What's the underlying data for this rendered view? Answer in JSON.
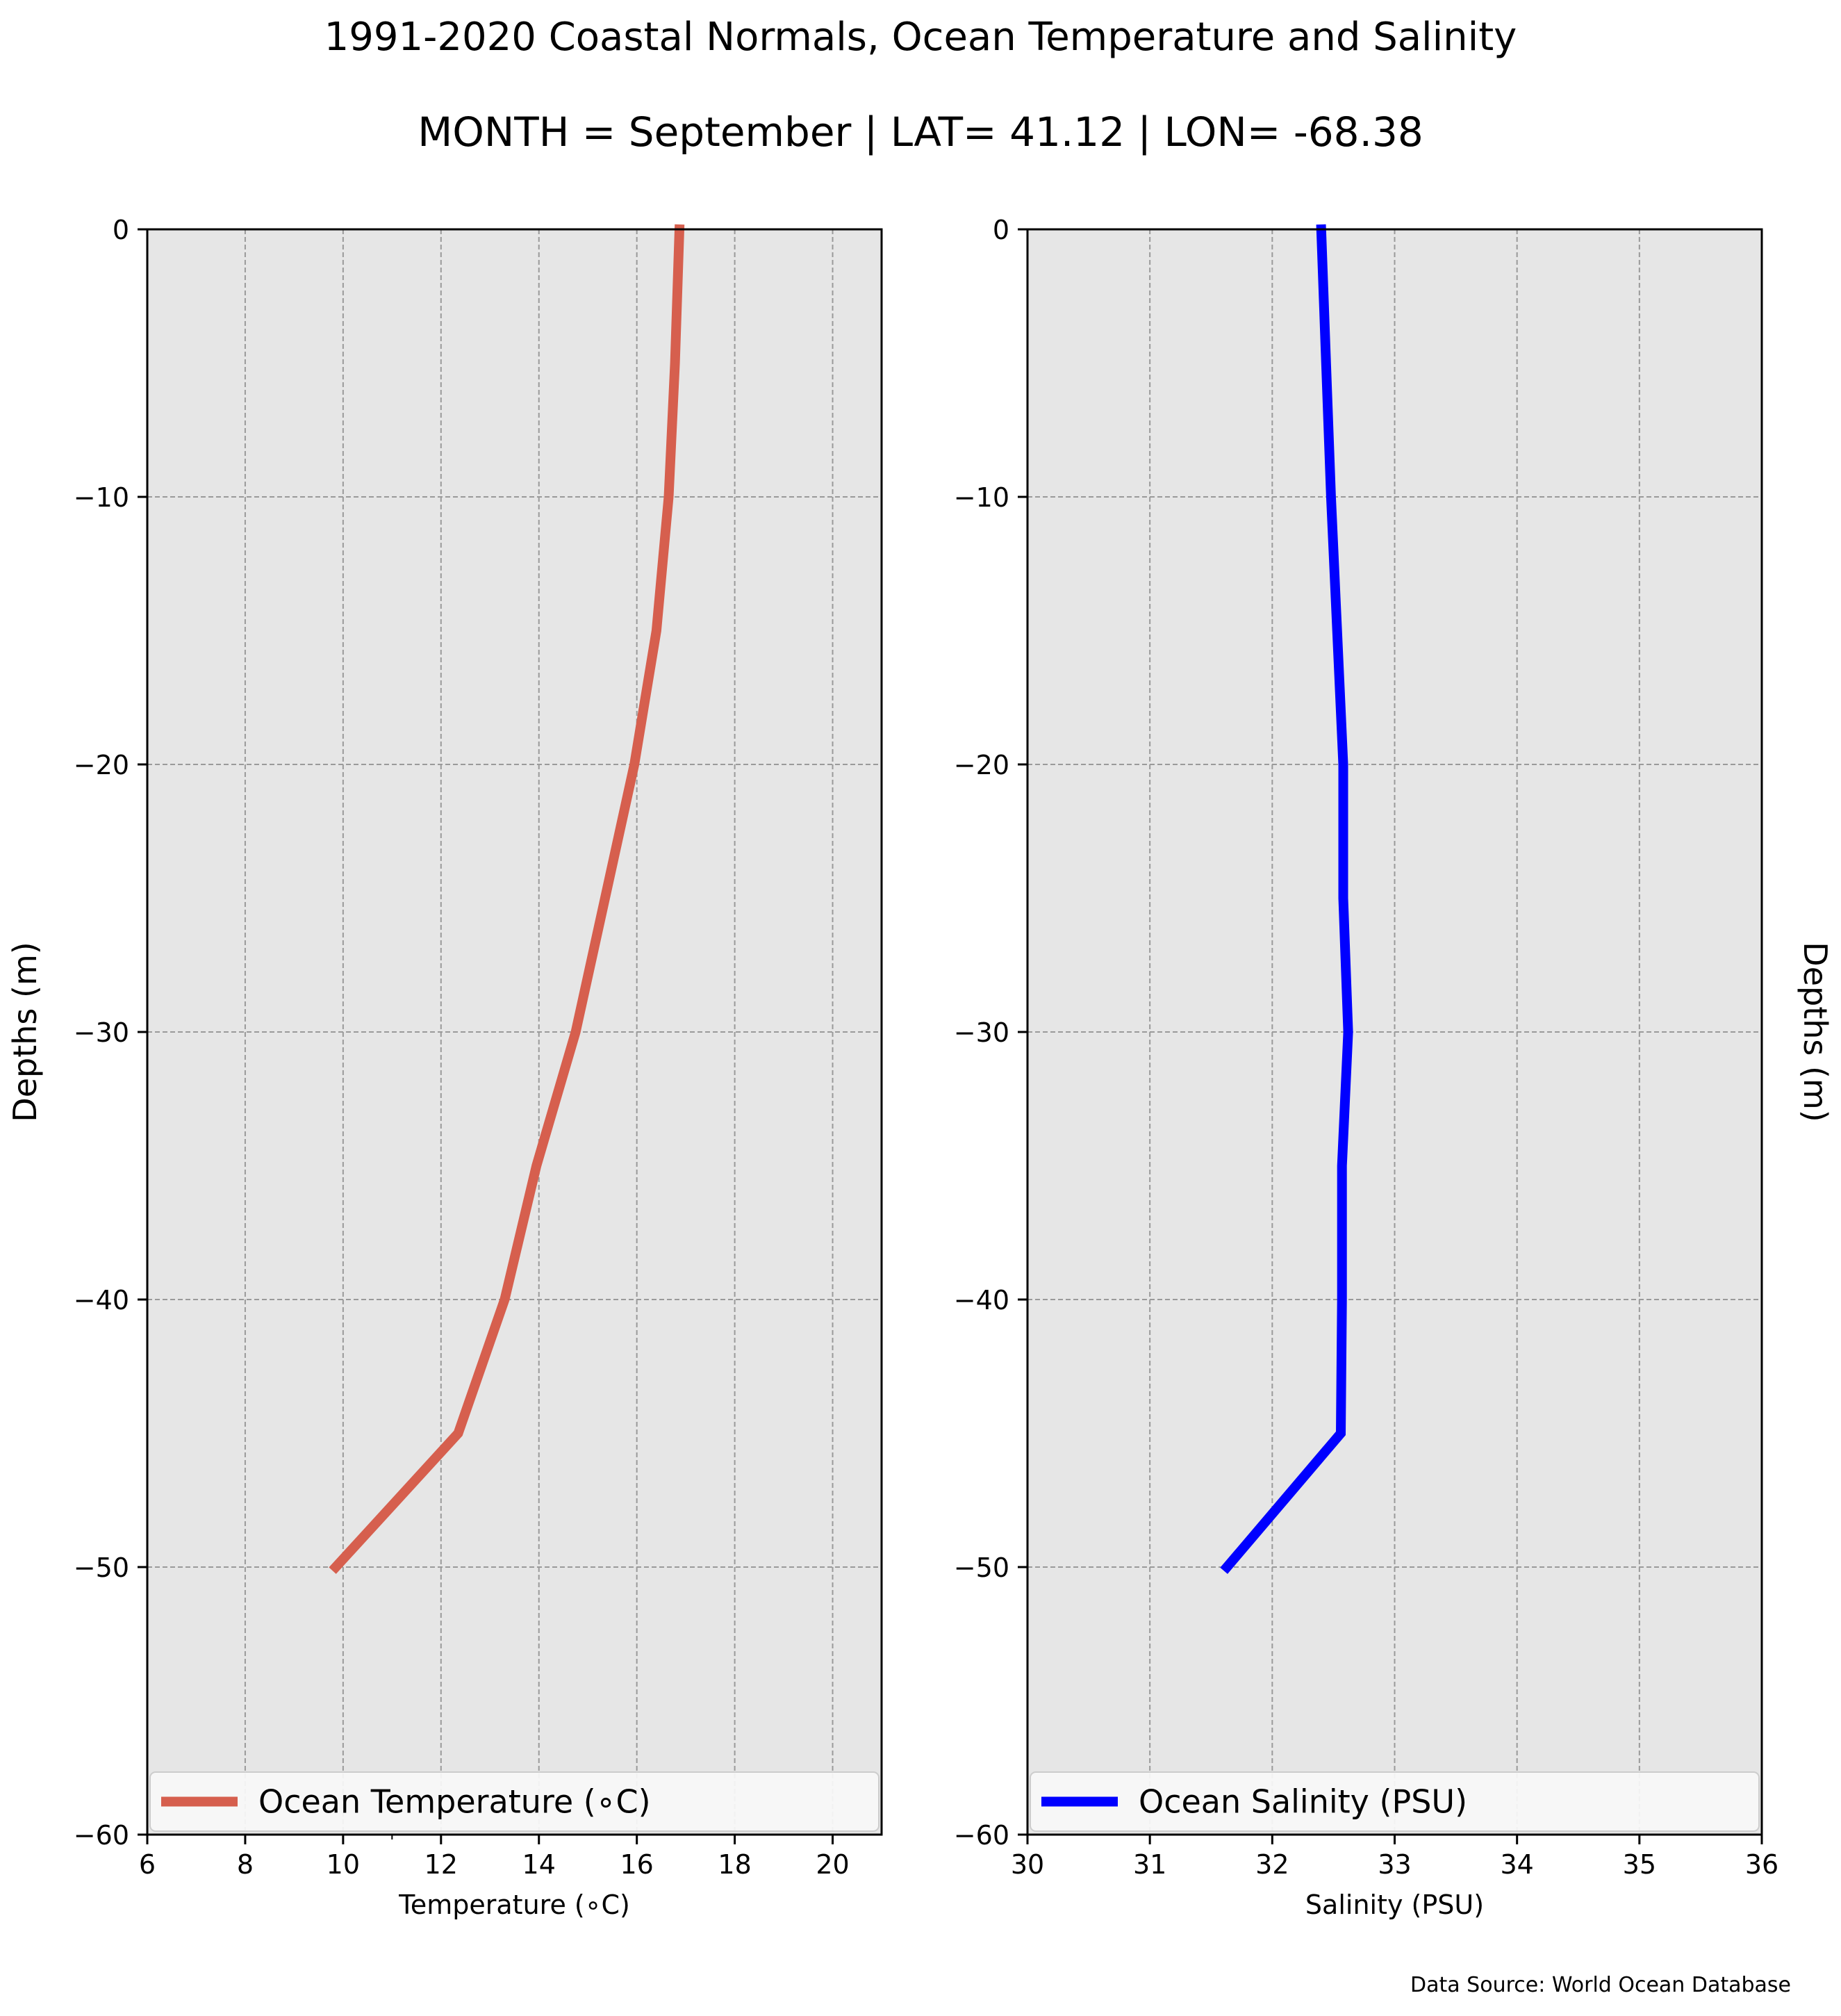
{
  "figure": {
    "title_line1": "1991-2020 Coastal Normals, Ocean Temperature and Salinity",
    "title_line2": "MONTH = September | LAT= 41.12 | LON= -68.38",
    "source_note": "Data Source: World Ocean Database"
  },
  "chart_data": [
    {
      "type": "line",
      "orientation": "profile (x = value, y = depth)",
      "xlabel": "Temperature ($^\\circ$C)",
      "xlabel_display": "Temperature (∘C)",
      "ylabel": "Depths (m)",
      "xlim": [
        6,
        21
      ],
      "ylim": [
        -60,
        0
      ],
      "x_ticks": [
        6,
        8,
        10,
        12,
        14,
        16,
        18,
        20
      ],
      "y_ticks": [
        0,
        -10,
        -20,
        -30,
        -40,
        -50,
        -60
      ],
      "y_tick_labels": [
        "0",
        "−10",
        "−20",
        "−30",
        "−40",
        "−50",
        "−60"
      ],
      "grid": true,
      "legend_position": "bottom, full width",
      "background": "#e6e6e6",
      "series": [
        {
          "name": "Ocean Temperature (∘C)",
          "color": "#d65f4e",
          "x": [
            16.87,
            16.78,
            16.65,
            16.4,
            15.95,
            15.35,
            14.75,
            13.95,
            13.3,
            12.35,
            9.85
          ],
          "y": [
            0,
            -5,
            -10,
            -15,
            -20,
            -25,
            -30,
            -35,
            -40,
            -45,
            -50
          ]
        }
      ]
    },
    {
      "type": "line",
      "orientation": "profile (x = value, y = depth)",
      "xlabel": "Salinity (PSU)",
      "ylabel": "Depths (m)",
      "xlim": [
        30,
        36
      ],
      "ylim": [
        -60,
        0
      ],
      "x_ticks": [
        30,
        31,
        32,
        33,
        34,
        35,
        36
      ],
      "y_ticks": [
        0,
        -10,
        -20,
        -30,
        -40,
        -50,
        -60
      ],
      "y_tick_labels": [
        "0",
        "−10",
        "−20",
        "−30",
        "−40",
        "−50",
        "−60"
      ],
      "grid": true,
      "legend_position": "bottom, full width",
      "background": "#e6e6e6",
      "series": [
        {
          "name": "Ocean Salinity (PSU)",
          "color": "#0000ff",
          "x": [
            32.4,
            32.44,
            32.48,
            32.53,
            32.58,
            32.58,
            32.62,
            32.57,
            32.57,
            32.56,
            31.63
          ],
          "y": [
            0,
            -5,
            -10,
            -15,
            -20,
            -25,
            -30,
            -35,
            -40,
            -45,
            -50
          ]
        }
      ]
    }
  ]
}
